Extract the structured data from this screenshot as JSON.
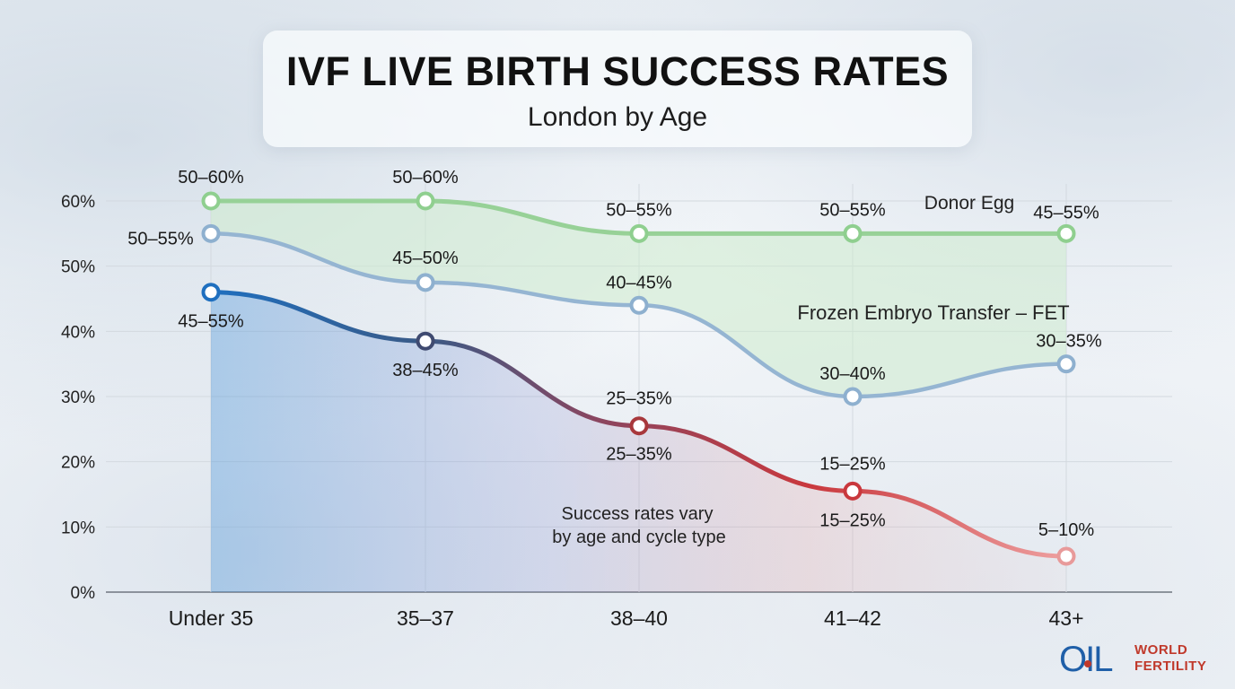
{
  "header": {
    "title": "IVF LIVE BIRTH SUCCESS RATES",
    "subtitle": "London by Age"
  },
  "logo": {
    "line1": "WORLD",
    "line2": "FERTILITY"
  },
  "chart_data": {
    "type": "line",
    "categories": [
      "Under 35",
      "35–37",
      "38–40",
      "41–42",
      "43+"
    ],
    "y_ticks": [
      "0%",
      "10%",
      "20%",
      "30%",
      "40%",
      "50%",
      "60%"
    ],
    "ylim": [
      0,
      60
    ],
    "grid": true,
    "series": [
      {
        "name": "Donor Egg",
        "color": "#8fcf8f",
        "values": [
          60,
          60,
          55,
          55,
          55
        ],
        "labels": [
          "50–60%",
          "50–60%",
          "50–55%",
          "50–55%",
          "45–55%"
        ]
      },
      {
        "name": "Frozen Embryo Transfer – FET",
        "color": "#8eb0cf",
        "values": [
          55,
          47.5,
          44,
          30,
          35
        ],
        "labels": [
          "50–55%",
          "45–50%",
          "40–45%",
          "30–40%",
          "30–35%"
        ]
      },
      {
        "name": "",
        "color": "#c0392b",
        "values": [
          46,
          38.5,
          25.5,
          15.5,
          5.5
        ],
        "labels": [
          "45–55%",
          "38–45%",
          "25–35%",
          "15–25%",
          "5–10%"
        ],
        "extra_labels": [
          "",
          "",
          "25–35%",
          "15–25%",
          ""
        ]
      }
    ],
    "annotation": [
      "Success rates vary",
      "by age and cycle type"
    ]
  }
}
